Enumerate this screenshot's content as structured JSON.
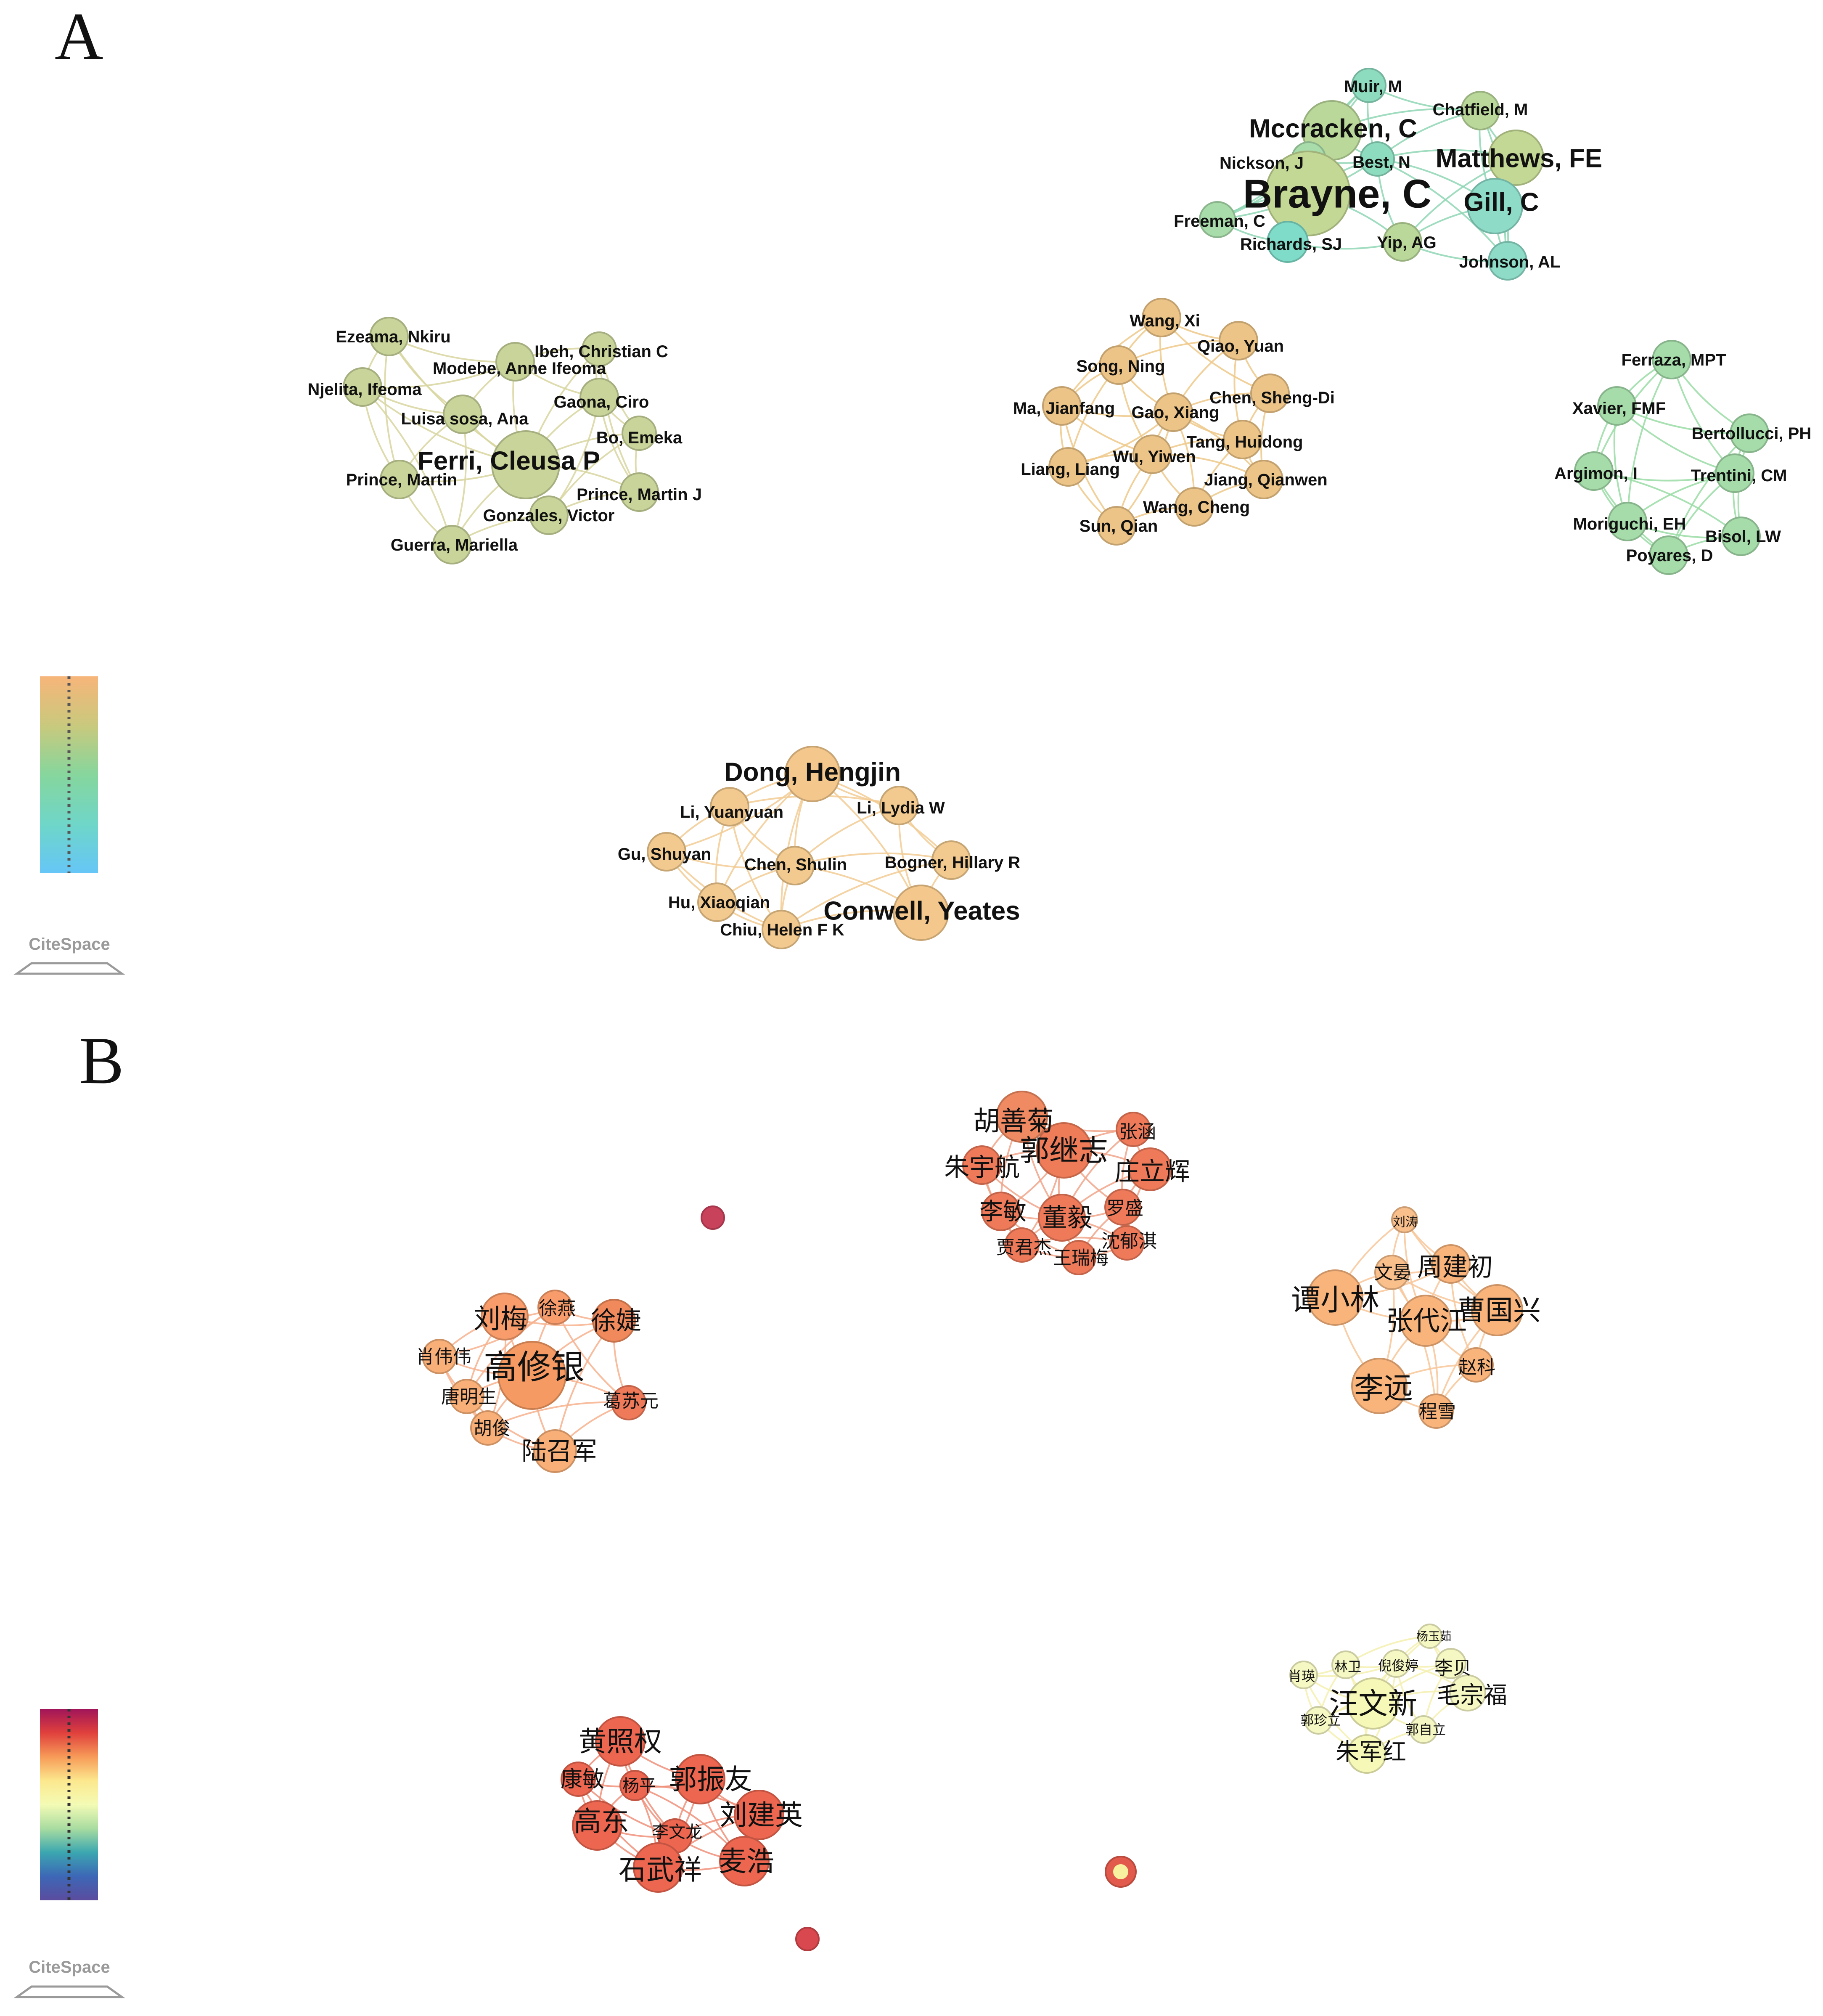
{
  "figure": {
    "panels": [
      {
        "id": "A",
        "label": "A",
        "logo": "CiteSpace",
        "colorbar": [
          "#f7b57a",
          "#c9c97d",
          "#86d69d",
          "#6fd6c8",
          "#66c6f7"
        ],
        "clusters": [
          {
            "id": "A-brayne",
            "edge_color": "#8fd6b4",
            "nodes": [
              {
                "name": "Muir, M",
                "color": "#8edcc0",
                "size": "sm"
              },
              {
                "name": "Chatfield, M",
                "color": "#b9d89a",
                "size": "sm"
              },
              {
                "name": "Mccracken, C",
                "color": "#b9d89a",
                "size": "md"
              },
              {
                "name": "Matthews, FE",
                "color": "#c4d895",
                "size": "md"
              },
              {
                "name": "Nickson, J",
                "color": "#a8dcaa",
                "size": "sm"
              },
              {
                "name": "Best, N",
                "color": "#8edcc0",
                "size": "sm"
              },
              {
                "name": "Brayne, C",
                "color": "#c4d895",
                "size": "xl"
              },
              {
                "name": "Gill, C",
                "color": "#8edcc8",
                "size": "md"
              },
              {
                "name": "Freeman, C",
                "color": "#a8dcaa",
                "size": "sm"
              },
              {
                "name": "Richards, SJ",
                "color": "#7fdcc8",
                "size": "sm"
              },
              {
                "name": "Yip, AG",
                "color": "#b9d89a",
                "size": "sm"
              },
              {
                "name": "Johnson, AL",
                "color": "#8edcc8",
                "size": "sm"
              }
            ]
          },
          {
            "id": "A-ferri",
            "edge_color": "#d8d6a0",
            "nodes": [
              {
                "name": "Ezeama, Nkiru",
                "color": "#c9d49a",
                "size": "sm"
              },
              {
                "name": "Ibeh, Christian C",
                "color": "#c9d49a",
                "size": "sm"
              },
              {
                "name": "Modebe, Anne Ifeoma",
                "color": "#c9d49a",
                "size": "sm"
              },
              {
                "name": "Njelita, Ifeoma",
                "color": "#c9d49a",
                "size": "sm"
              },
              {
                "name": "Gaona, Ciro",
                "color": "#c9d49a",
                "size": "sm"
              },
              {
                "name": "Luisa sosa, Ana",
                "color": "#c9d49a",
                "size": "sm"
              },
              {
                "name": "Bo, Emeka",
                "color": "#c9d49a",
                "size": "sm"
              },
              {
                "name": "Ferri, Cleusa P",
                "color": "#c9d49a",
                "size": "lg"
              },
              {
                "name": "Prince, Martin",
                "color": "#c9d49a",
                "size": "sm"
              },
              {
                "name": "Prince, Martin J",
                "color": "#c9d49a",
                "size": "sm"
              },
              {
                "name": "Gonzales, Victor",
                "color": "#c9d49a",
                "size": "sm"
              },
              {
                "name": "Guerra, Mariella",
                "color": "#c9d49a",
                "size": "sm"
              }
            ]
          },
          {
            "id": "A-wang",
            "edge_color": "#efc98a",
            "nodes": [
              {
                "name": "Wang, Xi",
                "color": "#ecc487",
                "size": "sm"
              },
              {
                "name": "Qiao, Yuan",
                "color": "#ecc487",
                "size": "sm"
              },
              {
                "name": "Song, Ning",
                "color": "#ecc487",
                "size": "sm"
              },
              {
                "name": "Chen, Sheng-Di",
                "color": "#ecc487",
                "size": "sm"
              },
              {
                "name": "Ma, Jianfang",
                "color": "#ecc487",
                "size": "sm"
              },
              {
                "name": "Gao, Xiang",
                "color": "#ecc487",
                "size": "sm"
              },
              {
                "name": "Tang, Huidong",
                "color": "#ecc487",
                "size": "sm"
              },
              {
                "name": "Wu, Yiwen",
                "color": "#ecc487",
                "size": "sm"
              },
              {
                "name": "Liang, Liang",
                "color": "#ecc487",
                "size": "sm"
              },
              {
                "name": "Jiang, Qianwen",
                "color": "#ecc487",
                "size": "sm"
              },
              {
                "name": "Wang, Cheng",
                "color": "#ecc487",
                "size": "sm"
              },
              {
                "name": "Sun, Qian",
                "color": "#ecc487",
                "size": "sm"
              }
            ]
          },
          {
            "id": "A-ferraza",
            "edge_color": "#9adca6",
            "nodes": [
              {
                "name": "Ferraza, MPT",
                "color": "#a5dcaa",
                "size": "sm"
              },
              {
                "name": "Xavier, FMF",
                "color": "#a5dcaa",
                "size": "sm"
              },
              {
                "name": "Bertollucci, PH",
                "color": "#a5dcaa",
                "size": "sm"
              },
              {
                "name": "Argimon, I",
                "color": "#a5dcaa",
                "size": "sm"
              },
              {
                "name": "Trentini, CM",
                "color": "#a5dcaa",
                "size": "sm"
              },
              {
                "name": "Moriguchi, EH",
                "color": "#a5dcaa",
                "size": "sm"
              },
              {
                "name": "Bisol, LW",
                "color": "#a5dcaa",
                "size": "sm"
              },
              {
                "name": "Poyares, D",
                "color": "#a5dcaa",
                "size": "sm"
              }
            ]
          },
          {
            "id": "A-dong",
            "edge_color": "#f2cb94",
            "nodes": [
              {
                "name": "Dong, Hengjin",
                "color": "#f4c88c",
                "size": "md"
              },
              {
                "name": "Li, Yuanyuan",
                "color": "#f2c98e",
                "size": "sm"
              },
              {
                "name": "Li, Lydia W",
                "color": "#f2c98e",
                "size": "sm"
              },
              {
                "name": "Gu, Shuyan",
                "color": "#f2c98e",
                "size": "sm"
              },
              {
                "name": "Chen, Shulin",
                "color": "#f2c98e",
                "size": "sm"
              },
              {
                "name": "Bogner, Hillary R",
                "color": "#f2c98e",
                "size": "sm"
              },
              {
                "name": "Hu, Xiaoqian",
                "color": "#f2c98e",
                "size": "sm"
              },
              {
                "name": "Conwell, Yeates",
                "color": "#f4c88c",
                "size": "md"
              },
              {
                "name": "Chiu, Helen F K",
                "color": "#f2c98e",
                "size": "sm"
              }
            ]
          }
        ]
      },
      {
        "id": "B",
        "label": "B",
        "logo": "CiteSpace",
        "colorbar": [
          "#a0155a",
          "#e0403c",
          "#f79a58",
          "#fce88e",
          "#f4fbb5",
          "#a8dca0",
          "#3ba7b0",
          "#3d67b6",
          "#5b4c9e"
        ],
        "clusters": [
          {
            "id": "B-guo",
            "edge_color": "#f0a58a",
            "nodes": [
              {
                "name": "胡善菊",
                "color": "#f08a62",
                "size": "md"
              },
              {
                "name": "张涵",
                "color": "#ee7a5a",
                "size": "sm"
              },
              {
                "name": "郭继志",
                "color": "#ef7c58",
                "size": "lg"
              },
              {
                "name": "朱宇航",
                "color": "#ee7a5a",
                "size": "sm"
              },
              {
                "name": "庄立辉",
                "color": "#ee7a5a",
                "size": "sm"
              },
              {
                "name": "李敏",
                "color": "#ee7a5a",
                "size": "sm"
              },
              {
                "name": "董毅",
                "color": "#ee7a5a",
                "size": "sm"
              },
              {
                "name": "罗盛",
                "color": "#ee7a5a",
                "size": "sm"
              },
              {
                "name": "贾君杰",
                "color": "#ee7a5a",
                "size": "sm"
              },
              {
                "name": "王瑞梅",
                "color": "#ee7a5a",
                "size": "sm"
              },
              {
                "name": "沈郁淇",
                "color": "#ee7a5a",
                "size": "sm"
              }
            ]
          },
          {
            "id": "B-gao",
            "edge_color": "#f7b28e",
            "nodes": [
              {
                "name": "刘梅",
                "color": "#f79c6a",
                "size": "sm"
              },
              {
                "name": "徐燕",
                "color": "#f79c6a",
                "size": "sm"
              },
              {
                "name": "徐婕",
                "color": "#f08a5c",
                "size": "sm"
              },
              {
                "name": "肖伟伟",
                "color": "#f9b078",
                "size": "sm"
              },
              {
                "name": "高修银",
                "color": "#f59a62",
                "size": "lg"
              },
              {
                "name": "唐明生",
                "color": "#f9b078",
                "size": "sm"
              },
              {
                "name": "葛苏元",
                "color": "#ee7a5a",
                "size": "sm"
              },
              {
                "name": "胡俊",
                "color": "#f9b078",
                "size": "sm"
              },
              {
                "name": "陆召军",
                "color": "#f9b078",
                "size": "md"
              }
            ]
          },
          {
            "id": "B-tan",
            "edge_color": "#f8c79a",
            "nodes": [
              {
                "name": "刘涛",
                "color": "#f9c08c",
                "size": "sm"
              },
              {
                "name": "文晏",
                "color": "#f9c08c",
                "size": "sm"
              },
              {
                "name": "周建初",
                "color": "#f9b47c",
                "size": "sm"
              },
              {
                "name": "谭小林",
                "color": "#f9b47c",
                "size": "md"
              },
              {
                "name": "张代江",
                "color": "#f9b47c",
                "size": "md"
              },
              {
                "name": "曹国兴",
                "color": "#f9b47c",
                "size": "md"
              },
              {
                "name": "赵科",
                "color": "#f9b47c",
                "size": "sm"
              },
              {
                "name": "李远",
                "color": "#f9b47c",
                "size": "md"
              },
              {
                "name": "程雪",
                "color": "#f9b47c",
                "size": "sm"
              }
            ]
          },
          {
            "id": "B-wang",
            "edge_color": "#f4f0b0",
            "nodes": [
              {
                "name": "杨玉茹",
                "color": "#f6f8c4",
                "size": "sm"
              },
              {
                "name": "肖瑛",
                "color": "#f6f8c4",
                "size": "sm"
              },
              {
                "name": "林卫",
                "color": "#f6f8c4",
                "size": "sm"
              },
              {
                "name": "倪俊婷",
                "color": "#f6f8c4",
                "size": "sm"
              },
              {
                "name": "李贝",
                "color": "#f6f8c4",
                "size": "sm"
              },
              {
                "name": "汪文新",
                "color": "#f6f8b8",
                "size": "md"
              },
              {
                "name": "毛宗福",
                "color": "#f6f8c4",
                "size": "sm"
              },
              {
                "name": "郭珍立",
                "color": "#f6f8c4",
                "size": "sm"
              },
              {
                "name": "郭自立",
                "color": "#f6f8c4",
                "size": "sm"
              },
              {
                "name": "朱军红",
                "color": "#f6f8b8",
                "size": "sm"
              }
            ]
          },
          {
            "id": "B-huang",
            "edge_color": "#f0907a",
            "nodes": [
              {
                "name": "黄照权",
                "color": "#ec6650",
                "size": "md"
              },
              {
                "name": "康敏",
                "color": "#ec6650",
                "size": "sm"
              },
              {
                "name": "杨平",
                "color": "#ec6650",
                "size": "sm"
              },
              {
                "name": "郭振友",
                "color": "#ec6650",
                "size": "md"
              },
              {
                "name": "刘建英",
                "color": "#ec6650",
                "size": "md"
              },
              {
                "name": "高东",
                "color": "#ec6650",
                "size": "md"
              },
              {
                "name": "李文龙",
                "color": "#ec6650",
                "size": "sm"
              },
              {
                "name": "石武祥",
                "color": "#ec6650",
                "size": "md"
              },
              {
                "name": "麦浩",
                "color": "#ec6650",
                "size": "md"
              }
            ]
          },
          {
            "id": "B-isolates",
            "edge_color": "#e06050",
            "nodes": [
              {
                "name": "",
                "color": "#c9425c",
                "size": "sm"
              },
              {
                "name": "",
                "color": "#e25a4c",
                "size": "sm",
                "core": "#f8f2a0"
              },
              {
                "name": "",
                "color": "#d9484e",
                "size": "sm"
              }
            ]
          }
        ]
      }
    ]
  }
}
